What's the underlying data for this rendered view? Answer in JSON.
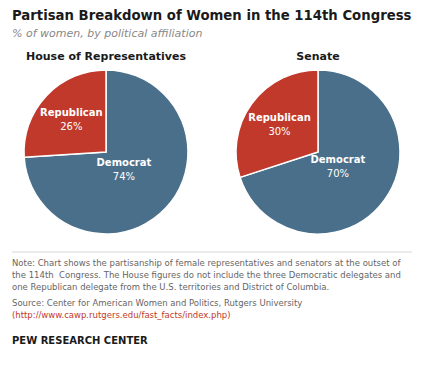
{
  "title": "Partisan Breakdown of Women in the 114th Congress",
  "subtitle": "% of women, by political affiliation",
  "annotations": [
    "Note: Chart shows the partisanship of female representatives and senators at the outset of",
    "the 114th  Congress. The House figures do not include the three Democratic delegates and",
    "one Republican delegate from the U.S. territories and District of Columbia.",
    "Source: Center for American Women and Politics, Rutgers University",
    "(http://www.cawp.rutgers.edu/fast_facts/index.php)",
    "PEW RESEARCH CENTER"
  ],
  "chart_data": [
    {
      "type": "pie",
      "title": "House of Representatives",
      "categories": [
        "Democrat",
        "Republican"
      ],
      "values": [
        74,
        26
      ],
      "value_labels": [
        "74%",
        "26%"
      ],
      "colors": [
        "#4a6f8a",
        "#c0392b"
      ],
      "data_labels": true
    },
    {
      "type": "pie",
      "title": "Senate",
      "categories": [
        "Democrat",
        "Republican"
      ],
      "values": [
        70,
        30
      ],
      "value_labels": [
        "70%",
        "30%"
      ],
      "colors": [
        "#4a6f8a",
        "#c0392b"
      ],
      "data_labels": true
    }
  ]
}
